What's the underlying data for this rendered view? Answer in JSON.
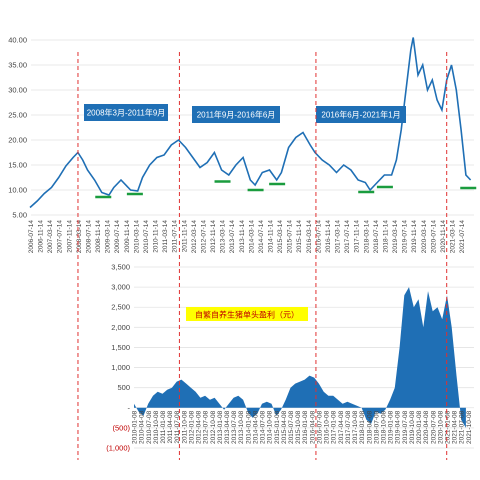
{
  "chart_data": [
    {
      "type": "line",
      "ylim": [
        5,
        40
      ],
      "yticks": [
        "5.00",
        "10.00",
        "15.00",
        "20.00",
        "25.00",
        "30.00",
        "35.00",
        "40.00"
      ],
      "x_start": "2006-07-14",
      "x_tick_labels": [
        "2006-07-14",
        "2006-11-14",
        "2007-03-14",
        "2007-07-14",
        "2007-11-14",
        "2008-03-14",
        "2008-07-14",
        "2008-11-14",
        "2009-03-14",
        "2009-07-14",
        "2009-11-14",
        "2010-03-14",
        "2010-07-14",
        "2010-11-14",
        "2011-03-14",
        "2011-07-14",
        "2011-11-14",
        "2012-03-14",
        "2012-07-14",
        "2012-11-14",
        "2013-03-14",
        "2013-07-14",
        "2013-11-14",
        "2014-03-14",
        "2014-07-14",
        "2014-11-14",
        "2015-03-14",
        "2015-07-14",
        "2015-11-14",
        "2016-03-14",
        "2016-07-14",
        "2016-11-14",
        "2017-03-14",
        "2017-07-14",
        "2017-11-14",
        "2018-03-14",
        "2018-07-14",
        "2018-11-14",
        "2019-03-14",
        "2019-07-14",
        "2019-11-14",
        "2020-03-14",
        "2020-07-14",
        "2020-11-14",
        "2021-03-14",
        "2021-07-14"
      ],
      "line_color": "#1f6fb5",
      "series": [
        {
          "x": [
            "2006-07",
            "2006-10",
            "2007-01",
            "2007-04",
            "2007-07",
            "2007-10",
            "2008-01",
            "2008-03",
            "2008-05",
            "2008-07",
            "2008-10",
            "2009-01",
            "2009-04",
            "2009-06",
            "2009-09",
            "2010-01",
            "2010-04",
            "2010-06",
            "2010-09",
            "2010-12",
            "2011-03",
            "2011-06",
            "2011-09",
            "2011-12",
            "2012-03",
            "2012-06",
            "2012-09",
            "2012-12",
            "2013-03",
            "2013-06",
            "2013-09",
            "2013-12",
            "2014-03",
            "2014-05",
            "2014-08",
            "2014-11",
            "2015-02",
            "2015-04",
            "2015-07",
            "2015-10",
            "2016-01",
            "2016-04",
            "2016-06",
            "2016-09",
            "2016-12",
            "2017-03",
            "2017-06",
            "2017-09",
            "2017-12",
            "2018-03",
            "2018-05",
            "2018-08",
            "2018-11",
            "2019-02",
            "2019-04",
            "2019-06",
            "2019-08",
            "2019-10",
            "2019-11",
            "2020-01",
            "2020-03",
            "2020-05",
            "2020-07",
            "2020-09",
            "2020-11",
            "2021-01",
            "2021-03",
            "2021-05",
            "2021-07",
            "2021-09",
            "2021-11"
          ],
          "y": [
            6.5,
            7.8,
            9.3,
            10.5,
            12.5,
            14.8,
            16.5,
            17.5,
            16.0,
            14.0,
            12.0,
            9.5,
            9.0,
            10.5,
            12.0,
            10.0,
            9.8,
            12.5,
            15.0,
            16.5,
            17.0,
            19.0,
            20.0,
            18.5,
            16.5,
            14.5,
            15.5,
            17.5,
            14.0,
            13.0,
            15.0,
            16.5,
            12.0,
            11.0,
            13.5,
            14.0,
            12.0,
            13.5,
            18.5,
            20.5,
            21.5,
            19.0,
            17.5,
            16.0,
            15.0,
            13.5,
            15.0,
            14.0,
            12.0,
            11.5,
            10.0,
            11.5,
            13.0,
            13.0,
            16.0,
            22.0,
            30.0,
            38.0,
            40.5,
            33.0,
            35.0,
            30.0,
            32.0,
            28.0,
            26.0,
            32.0,
            35.0,
            30.0,
            22.0,
            13.0,
            12.0
          ]
        }
      ],
      "period_labels": [
        "2008年3月-2011年9月",
        "2011年9月-2016年6月",
        "2016年6月-2021年1月"
      ],
      "period_box_color": "#1f6fb5",
      "marker_color": "#1a9c3e",
      "divider_color": "#e03131"
    },
    {
      "type": "area",
      "ylim": [
        -1000,
        3500
      ],
      "yticks": [
        "3,500",
        "3,000",
        "2,500",
        "2,000",
        "1,500",
        "1,000",
        "500",
        "-",
        "(500)",
        "(1,000)"
      ],
      "x_start": "2010-04-08",
      "x_tick_labels": [
        "2010-01-08",
        "2010-04-08",
        "2010-07-08",
        "2010-10-08",
        "2011-01-08",
        "2011-04-08",
        "2011-07-08",
        "2011-10-08",
        "2012-01-08",
        "2012-04-08",
        "2012-07-08",
        "2012-10-08",
        "2013-01-08",
        "2013-04-08",
        "2013-07-08",
        "2013-10-08",
        "2014-01-08",
        "2014-04-08",
        "2014-07-08",
        "2014-10-08",
        "2015-01-08",
        "2015-04-08",
        "2015-07-08",
        "2015-10-08",
        "2016-01-08",
        "2016-04-08",
        "2016-07-08",
        "2016-10-08",
        "2017-01-08",
        "2017-04-08",
        "2017-07-08",
        "2017-10-08",
        "2018-01-08",
        "2018-04-08",
        "2018-07-08",
        "2018-10-08",
        "2019-01-08",
        "2019-04-08",
        "2019-07-08",
        "2019-10-08",
        "2020-01-08",
        "2020-04-08",
        "2020-07-08",
        "2020-10-08",
        "2021-01-08",
        "2021-04-08",
        "2021-07-08",
        "2021-10-08"
      ],
      "fill_color": "#1f6fb5",
      "series_label": "自繁自养生猪单头盈利（元）",
      "series_label_bg": "#ffff00",
      "series": [
        {
          "x": [
            "2010-01",
            "2010-03",
            "2010-05",
            "2010-07",
            "2010-09",
            "2010-11",
            "2011-01",
            "2011-03",
            "2011-05",
            "2011-07",
            "2011-09",
            "2011-11",
            "2012-01",
            "2012-03",
            "2012-05",
            "2012-07",
            "2012-09",
            "2012-11",
            "2013-01",
            "2013-03",
            "2013-05",
            "2013-07",
            "2013-09",
            "2013-11",
            "2014-01",
            "2014-03",
            "2014-05",
            "2014-07",
            "2014-09",
            "2014-11",
            "2015-01",
            "2015-03",
            "2015-05",
            "2015-07",
            "2015-09",
            "2015-11",
            "2016-01",
            "2016-03",
            "2016-05",
            "2016-07",
            "2016-09",
            "2016-11",
            "2017-01",
            "2017-03",
            "2017-05",
            "2017-07",
            "2017-09",
            "2017-11",
            "2018-01",
            "2018-03",
            "2018-05",
            "2018-07",
            "2018-09",
            "2018-11",
            "2019-01",
            "2019-03",
            "2019-05",
            "2019-07",
            "2019-09",
            "2019-11",
            "2020-01",
            "2020-03",
            "2020-05",
            "2020-07",
            "2020-09",
            "2020-11",
            "2021-01",
            "2021-03",
            "2021-05",
            "2021-07",
            "2021-09"
          ],
          "y": [
            100,
            -100,
            -200,
            100,
            300,
            400,
            350,
            450,
            500,
            650,
            700,
            600,
            500,
            400,
            250,
            300,
            200,
            250,
            100,
            -50,
            100,
            250,
            300,
            200,
            -100,
            -250,
            -150,
            100,
            150,
            100,
            -200,
            -50,
            200,
            500,
            600,
            650,
            700,
            800,
            750,
            600,
            400,
            300,
            300,
            200,
            100,
            150,
            100,
            50,
            0,
            -300,
            -400,
            -100,
            -150,
            -50,
            200,
            500,
            1500,
            2800,
            3000,
            2500,
            2700,
            2000,
            2900,
            2400,
            2500,
            2200,
            2800,
            2000,
            800,
            -300,
            -500
          ]
        }
      ]
    }
  ]
}
